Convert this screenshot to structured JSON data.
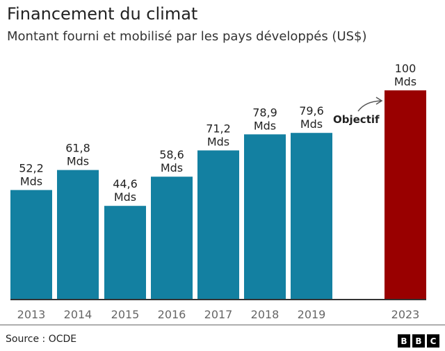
{
  "header": {
    "title": "Financement du climat",
    "subtitle": "Montant fourni et mobilisé par les pays développés (US$)"
  },
  "chart_data": {
    "type": "bar",
    "categories": [
      "2013",
      "2014",
      "2015",
      "2016",
      "2017",
      "2018",
      "2019",
      "2023"
    ],
    "values": [
      52.2,
      61.8,
      44.6,
      58.6,
      71.2,
      78.9,
      79.6,
      100
    ],
    "value_labels": [
      "52,2",
      "61,8",
      "44,6",
      "58,6",
      "71,2",
      "78,9",
      "79,6",
      "100"
    ],
    "unit_label": "Mds",
    "annotation": "Objectif",
    "ylim": [
      0,
      100
    ],
    "grid": false,
    "colors": {
      "actual": "#1380A1",
      "target": "#990000"
    }
  },
  "footer": {
    "source": "Source : OCDE",
    "logo": "BBC"
  }
}
